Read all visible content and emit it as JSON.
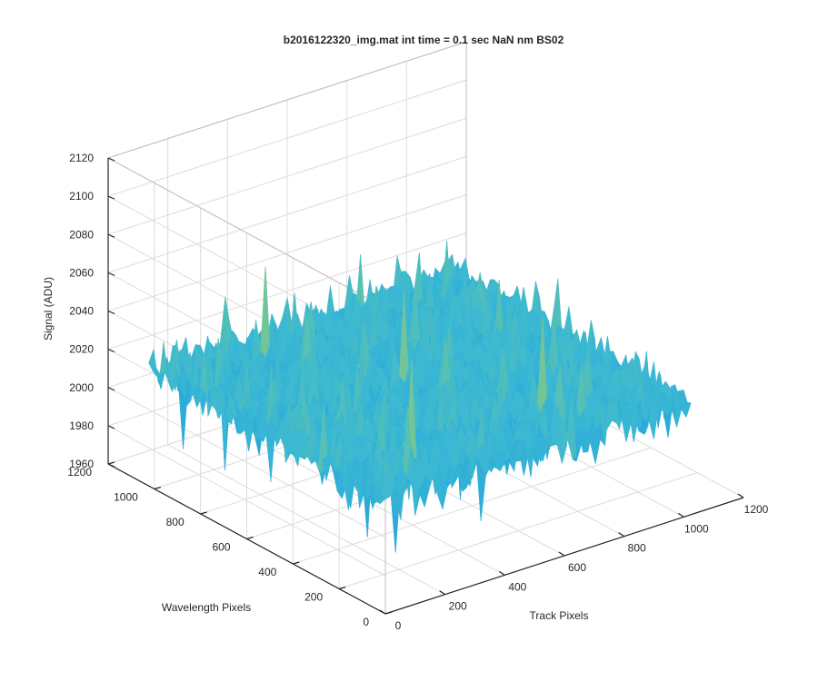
{
  "chart_data": {
    "type": "surface",
    "title": "b2016122320_img.mat int time = 0.1 sec  NaN nm BS02",
    "xlabel": "Track Pixels",
    "ylabel": "Wavelength Pixels",
    "zlabel": "Signal (ADU)",
    "xlim": [
      0,
      1200
    ],
    "ylim": [
      0,
      1200
    ],
    "zlim": [
      1960,
      2120
    ],
    "x_ticks": [
      "0",
      "200",
      "400",
      "600",
      "800",
      "1000",
      "1200"
    ],
    "y_ticks": [
      "0",
      "200",
      "400",
      "600",
      "800",
      "1000",
      "1200"
    ],
    "z_ticks": [
      "1960",
      "1980",
      "2000",
      "2020",
      "2040",
      "2060",
      "2080",
      "2100",
      "2120"
    ],
    "grid": true,
    "data_extent": {
      "x": [
        0,
        1024
      ],
      "y": [
        0,
        1024
      ]
    },
    "signal_mean": 2020,
    "signal_min": 1962,
    "signal_max": 2112,
    "colormap": [
      "#0072BD",
      "#1E9FE0",
      "#3BB8D3",
      "#5CC2AE",
      "#8FC87A",
      "#C2C54B",
      "#E8C23A"
    ],
    "color_range": [
      1990,
      2095
    ]
  }
}
